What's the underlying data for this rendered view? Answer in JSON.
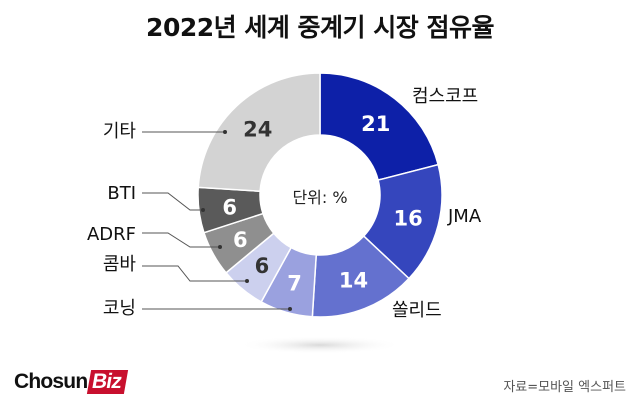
{
  "chart_data": {
    "type": "pie",
    "title": "2022년 세계 중계기 시장 점유율",
    "center_label": "단위: %",
    "categories": [
      "컴스코프",
      "JMA",
      "쏠리드",
      "코닝",
      "콤바",
      "ADRF",
      "BTI",
      "기타"
    ],
    "values": [
      21,
      16,
      14,
      7,
      6,
      6,
      6,
      24
    ],
    "colors": [
      "#0d20a8",
      "#3546bd",
      "#6471cf",
      "#9aa1df",
      "#ccd0ee",
      "#8f8f8f",
      "#5a5a5a",
      "#d3d3d3"
    ],
    "value_label_colors": [
      "#ffffff",
      "#ffffff",
      "#ffffff",
      "#ffffff",
      "#333333",
      "#ffffff",
      "#ffffff",
      "#333333"
    ]
  },
  "branding": {
    "logo_main": "Chosun",
    "logo_accent": "Biz"
  },
  "source": "자료=모바일 엑스퍼트"
}
